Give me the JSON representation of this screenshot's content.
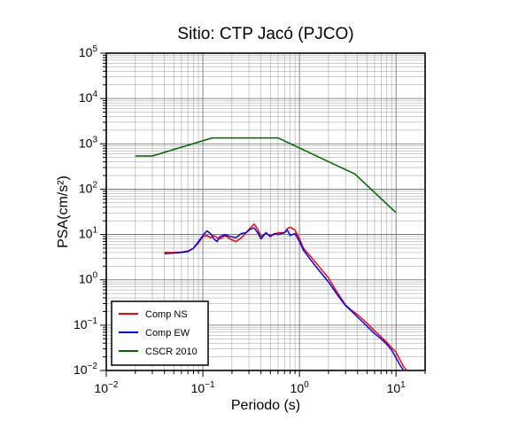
{
  "chart_data": {
    "type": "line",
    "title": "Sitio: CTP Jacó (PJCO)",
    "xlabel": "Periodo (s)",
    "ylabel": "PSA(cm/s²)",
    "xscale": "log",
    "yscale": "log",
    "xlim": [
      0.01,
      20
    ],
    "ylim": [
      0.01,
      100000
    ],
    "grid": true,
    "legend_position": "bottom-left",
    "x_ticks": [
      {
        "value": 0.01,
        "base": "10",
        "exp": "−2"
      },
      {
        "value": 0.1,
        "base": "10",
        "exp": "−1"
      },
      {
        "value": 1,
        "base": "10",
        "exp": "0"
      },
      {
        "value": 10,
        "base": "10",
        "exp": "1"
      }
    ],
    "y_ticks": [
      {
        "value": 0.01,
        "base": "10",
        "exp": "−2"
      },
      {
        "value": 0.1,
        "base": "10",
        "exp": "−1"
      },
      {
        "value": 1,
        "base": "10",
        "exp": "0"
      },
      {
        "value": 10,
        "base": "10",
        "exp": "1"
      },
      {
        "value": 100,
        "base": "10",
        "exp": "2"
      },
      {
        "value": 1000,
        "base": "10",
        "exp": "3"
      },
      {
        "value": 10000,
        "base": "10",
        "exp": "4"
      },
      {
        "value": 100000,
        "base": "10",
        "exp": "5"
      }
    ],
    "series": [
      {
        "name": "Comp NS",
        "color": "#ff0000",
        "points": [
          [
            0.04,
            4.0
          ],
          [
            0.05,
            4.0
          ],
          [
            0.06,
            4.1
          ],
          [
            0.07,
            4.3
          ],
          [
            0.08,
            5.0
          ],
          [
            0.09,
            6.5
          ],
          [
            0.1,
            9.0
          ],
          [
            0.11,
            9.5
          ],
          [
            0.12,
            8.5
          ],
          [
            0.13,
            9.5
          ],
          [
            0.14,
            8.5
          ],
          [
            0.15,
            8.0
          ],
          [
            0.17,
            9.5
          ],
          [
            0.19,
            8.0
          ],
          [
            0.22,
            7.0
          ],
          [
            0.25,
            8.5
          ],
          [
            0.28,
            11.0
          ],
          [
            0.31,
            14.0
          ],
          [
            0.34,
            17.0
          ],
          [
            0.37,
            13.0
          ],
          [
            0.4,
            9.0
          ],
          [
            0.45,
            10.5
          ],
          [
            0.5,
            9.5
          ],
          [
            0.55,
            10.0
          ],
          [
            0.6,
            11.0
          ],
          [
            0.7,
            11.0
          ],
          [
            0.75,
            13.5
          ],
          [
            0.8,
            14.5
          ],
          [
            0.9,
            12.5
          ],
          [
            1.0,
            8.0
          ],
          [
            1.1,
            5.0
          ],
          [
            1.3,
            3.3
          ],
          [
            1.5,
            2.3
          ],
          [
            2.0,
            1.1
          ],
          [
            2.5,
            0.5
          ],
          [
            3.0,
            0.28
          ],
          [
            3.5,
            0.21
          ],
          [
            4.0,
            0.17
          ],
          [
            5.0,
            0.11
          ],
          [
            6.0,
            0.075
          ],
          [
            7.0,
            0.055
          ],
          [
            8.0,
            0.042
          ],
          [
            9.0,
            0.032
          ],
          [
            10.0,
            0.025
          ],
          [
            11.0,
            0.017
          ],
          [
            12.0,
            0.012
          ],
          [
            13.0,
            0.01
          ]
        ]
      },
      {
        "name": "Comp EW",
        "color": "#0000ff",
        "points": [
          [
            0.04,
            3.8
          ],
          [
            0.05,
            3.9
          ],
          [
            0.06,
            4.0
          ],
          [
            0.07,
            4.2
          ],
          [
            0.08,
            5.0
          ],
          [
            0.09,
            7.0
          ],
          [
            0.1,
            9.5
          ],
          [
            0.11,
            12.0
          ],
          [
            0.12,
            10.5
          ],
          [
            0.13,
            8.0
          ],
          [
            0.14,
            7.0
          ],
          [
            0.15,
            9.0
          ],
          [
            0.17,
            10.0
          ],
          [
            0.19,
            9.0
          ],
          [
            0.22,
            8.5
          ],
          [
            0.25,
            10.5
          ],
          [
            0.28,
            11.0
          ],
          [
            0.31,
            13.0
          ],
          [
            0.34,
            14.0
          ],
          [
            0.37,
            11.0
          ],
          [
            0.4,
            8.0
          ],
          [
            0.45,
            11.0
          ],
          [
            0.5,
            9.0
          ],
          [
            0.55,
            10.5
          ],
          [
            0.6,
            10.0
          ],
          [
            0.7,
            11.0
          ],
          [
            0.75,
            12.5
          ],
          [
            0.8,
            9.5
          ],
          [
            0.9,
            10.5
          ],
          [
            1.0,
            7.0
          ],
          [
            1.1,
            4.5
          ],
          [
            1.3,
            2.8
          ],
          [
            1.5,
            1.9
          ],
          [
            2.0,
            0.9
          ],
          [
            2.5,
            0.45
          ],
          [
            3.0,
            0.27
          ],
          [
            3.5,
            0.2
          ],
          [
            4.0,
            0.15
          ],
          [
            5.0,
            0.095
          ],
          [
            6.0,
            0.065
          ],
          [
            7.0,
            0.05
          ],
          [
            8.0,
            0.038
          ],
          [
            9.0,
            0.028
          ],
          [
            10.0,
            0.019
          ],
          [
            11.0,
            0.013
          ],
          [
            12.0,
            0.01
          ]
        ]
      },
      {
        "name": "CSCR 2010",
        "color": "#006400",
        "points": [
          [
            0.02,
            540
          ],
          [
            0.03,
            540
          ],
          [
            0.125,
            1350
          ],
          [
            0.6,
            1350
          ],
          [
            3.75,
            216
          ],
          [
            10.0,
            30.4
          ]
        ]
      }
    ]
  }
}
